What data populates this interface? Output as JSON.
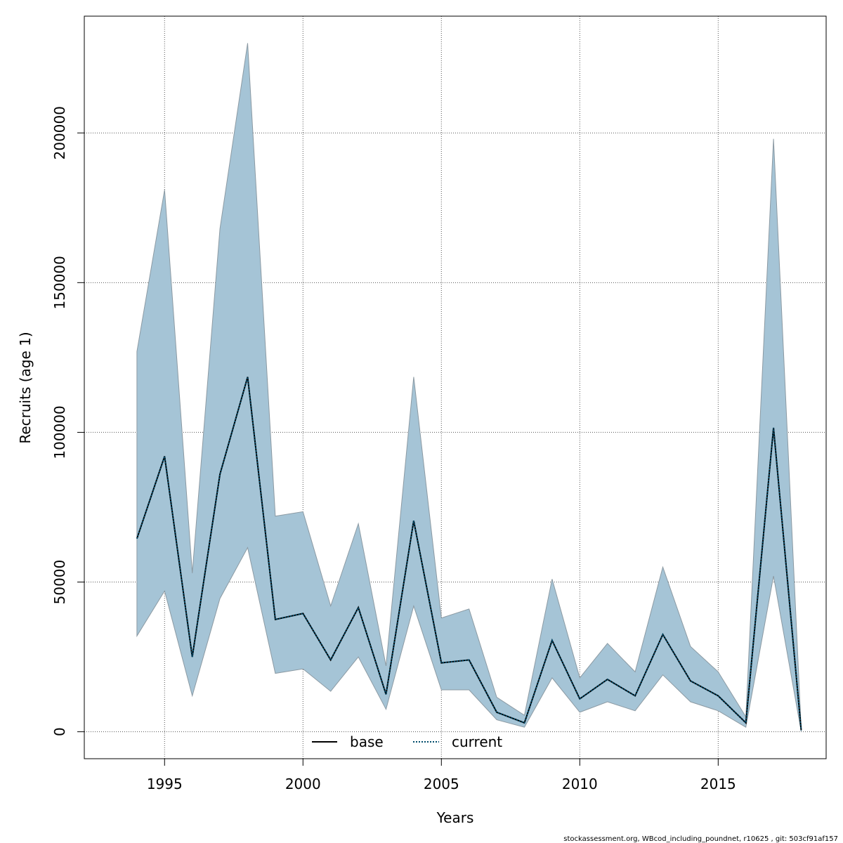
{
  "chart_data": {
    "type": "area",
    "xlabel": "Years",
    "ylabel": "Recruits (age 1)",
    "xlim": [
      1992.1,
      2018.9
    ],
    "ylim": [
      -9000,
      239000
    ],
    "grid": true,
    "x_ticks": [
      1995,
      2000,
      2005,
      2010,
      2015
    ],
    "y_ticks": [
      0,
      50000,
      100000,
      150000,
      200000
    ],
    "x": [
      1994,
      1995,
      1996,
      1997,
      1998,
      1999,
      2000,
      2001,
      2002,
      2003,
      2004,
      2005,
      2006,
      2007,
      2008,
      2009,
      2010,
      2011,
      2012,
      2013,
      2014,
      2015,
      2016,
      2017,
      2018
    ],
    "band_upper": [
      127000,
      181000,
      53000,
      168000,
      230000,
      72000,
      73500,
      42000,
      69500,
      22000,
      118500,
      38000,
      41000,
      11500,
      5500,
      51000,
      18000,
      29500,
      20000,
      55000,
      28500,
      20000,
      5000,
      198000,
      1000
    ],
    "band_lower": [
      32000,
      47000,
      12000,
      44500,
      61500,
      19500,
      21000,
      13500,
      25000,
      7500,
      42000,
      14000,
      14000,
      4000,
      1500,
      18000,
      6500,
      10000,
      7000,
      19000,
      10000,
      7000,
      1500,
      52000,
      0
    ],
    "series": [
      {
        "name": "base",
        "style": "solid",
        "values": [
          64500,
          92000,
          25000,
          86000,
          118500,
          37500,
          39500,
          24000,
          41500,
          12500,
          70500,
          23000,
          24000,
          6500,
          3000,
          30500,
          11000,
          17500,
          12000,
          32500,
          17000,
          12000,
          3000,
          101500,
          500
        ]
      },
      {
        "name": "current",
        "style": "dotted",
        "values": [
          64500,
          92000,
          25000,
          86000,
          118500,
          37500,
          39500,
          24000,
          41500,
          12500,
          70500,
          23000,
          24000,
          6500,
          3000,
          30500,
          11000,
          17500,
          12000,
          32500,
          17000,
          12000,
          3000,
          101500,
          500
        ]
      }
    ],
    "legend": {
      "placement": "bottom-center",
      "entries": [
        {
          "label": "base",
          "style": "solid"
        },
        {
          "label": "current",
          "style": "dotted"
        }
      ]
    },
    "colors": {
      "band_fill": "#a5c4d6",
      "band_edge": "#8c9aa3",
      "base_line": "#000000",
      "current_line": "#004b6b",
      "grid": "#555555"
    }
  },
  "footer": "stockassessment.org, WBcod_including_poundnet, r10625 , git: 503cf91af157"
}
